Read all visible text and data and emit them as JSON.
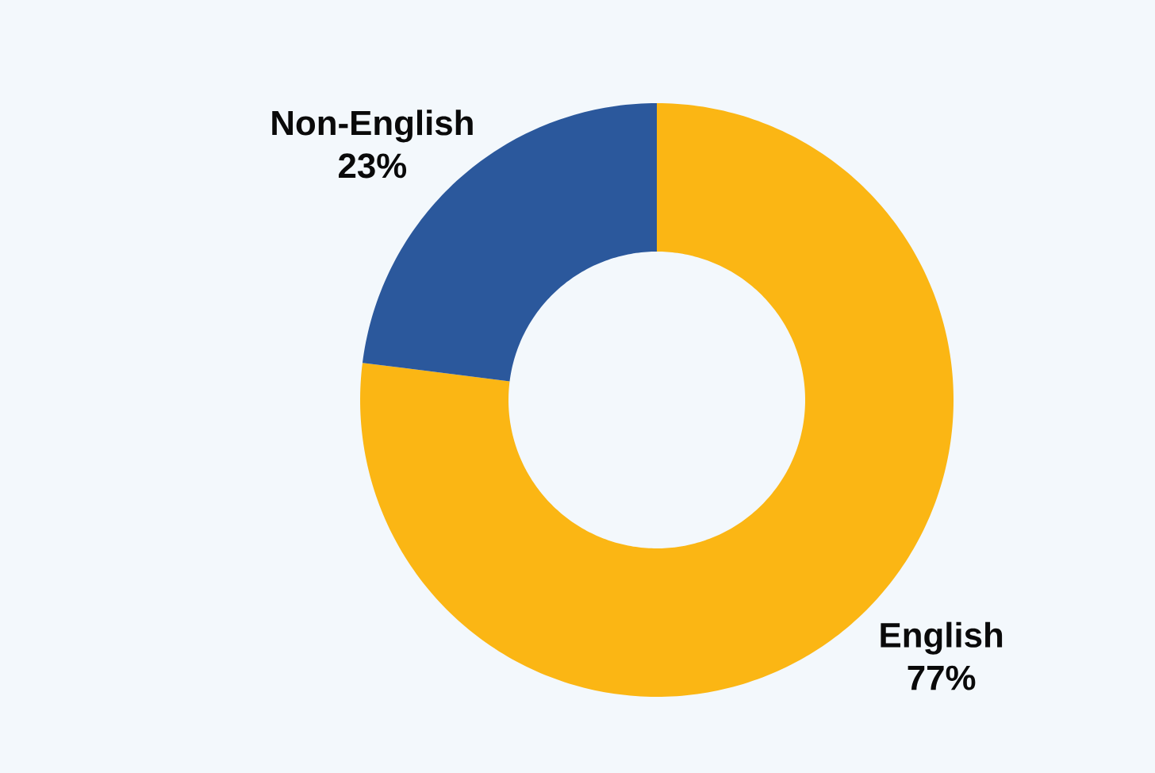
{
  "chart_data": {
    "type": "donut",
    "categories": [
      "English",
      "Non-English"
    ],
    "values": [
      77,
      23
    ],
    "colors": [
      "#fbb614",
      "#2b589c"
    ],
    "value_labels": [
      "77%",
      "23%"
    ]
  }
}
